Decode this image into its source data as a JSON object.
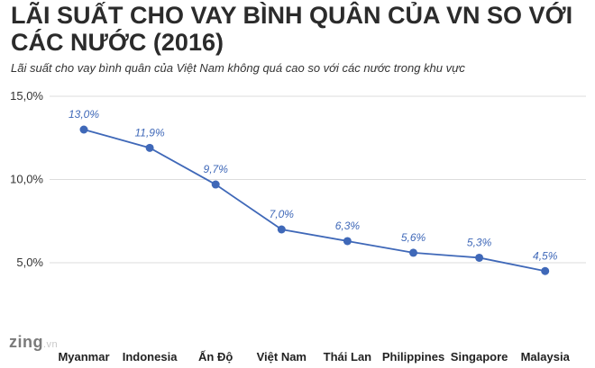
{
  "header": {
    "title": "LÃI SUẤT CHO VAY BÌNH QUÂN CỦA VN SO VỚI CÁC NƯỚC (2016)",
    "subtitle": "Lãi suất cho vay bình quân của Việt Nam không quá cao so với các nước trong khu vực"
  },
  "logo": {
    "brand": "zing",
    "suffix": ".vn"
  },
  "colors": {
    "line": "#3f68b8",
    "point": "#3f68b8",
    "label": "#3f68b8",
    "grid": "#dddddd",
    "axis_text": "#333333"
  },
  "chart_data": {
    "type": "line",
    "title": "LÃI SUẤT CHO VAY BÌNH QUÂN CỦA VN SO VỚI CÁC NƯỚC (2016)",
    "subtitle": "Lãi suất cho vay bình quân của Việt Nam không quá cao so với các nước trong khu vực",
    "categories": [
      "Myanmar",
      "Indonesia",
      "Ấn Độ",
      "Việt Nam",
      "Thái Lan",
      "Philippines",
      "Singapore",
      "Malaysia"
    ],
    "values": [
      13.0,
      11.9,
      9.7,
      7.0,
      6.3,
      5.6,
      5.3,
      4.5
    ],
    "data_labels": [
      "13,0%",
      "11,9%",
      "9,7%",
      "7,0%",
      "6,3%",
      "5,6%",
      "5,3%",
      "4,5%"
    ],
    "y_ticks": [
      5,
      10,
      15
    ],
    "y_tick_labels": [
      "5,0%",
      "10,0%",
      "15,0%"
    ],
    "ylim": [
      0,
      15
    ],
    "grid": true,
    "xlabel": "",
    "ylabel": ""
  }
}
